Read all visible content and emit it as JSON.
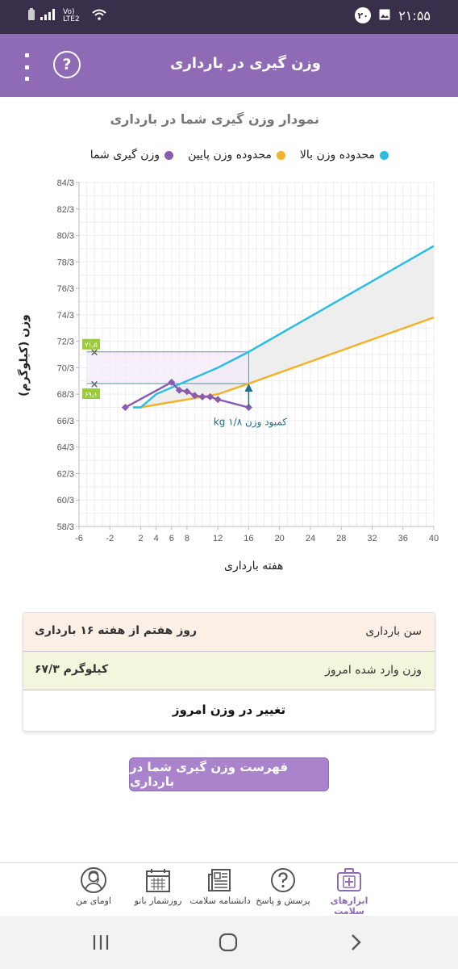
{
  "status": {
    "time": "۲۱:۵۵",
    "badge": "۲۰",
    "network": "Vo) LTE2"
  },
  "header": {
    "title": "وزن گیری در بارداری"
  },
  "chart_title": "نمودار وزن گیری شما در بارداری",
  "legend": {
    "upper": "محدوده وزن بالا",
    "lower": "محدوده وزن پایین",
    "yours": "وزن گیری شما"
  },
  "colors": {
    "upper": "#2bbde3",
    "lower": "#f2b22a",
    "yours": "#8a5bb0",
    "accent": "#8f6ab5"
  },
  "chart_data": {
    "type": "line",
    "xlabel": "هفته بارداری",
    "ylabel": "وزن (کیلوگرم)",
    "xlim": [
      -6,
      40
    ],
    "ylim": [
      58.3,
      84.3
    ],
    "x_ticks": [
      -6,
      -2,
      2,
      4,
      6,
      8,
      12,
      16,
      20,
      24,
      28,
      32,
      36,
      40
    ],
    "y_ticks": [
      "58/3",
      "60/3",
      "62/3",
      "64/3",
      "66/3",
      "68/3",
      "70/3",
      "72/3",
      "74/3",
      "76/3",
      "78/3",
      "80/3",
      "82/3",
      "84/3"
    ],
    "grid": true,
    "series": [
      {
        "name": "محدوده وزن بالا",
        "x": [
          1,
          2,
          4,
          8,
          12,
          16,
          40
        ],
        "y": [
          67.3,
          67.3,
          68.3,
          69.3,
          70.3,
          71.5,
          79.5
        ]
      },
      {
        "name": "محدوده وزن پایین",
        "x": [
          1,
          2,
          12,
          16,
          40
        ],
        "y": [
          67.3,
          67.3,
          68.3,
          69.1,
          74.1
        ]
      },
      {
        "name": "وزن گیری شما",
        "x": [
          0,
          6,
          7,
          8,
          9,
          10,
          11,
          12,
          16
        ],
        "y": [
          67.3,
          69.2,
          68.6,
          68.5,
          68.2,
          68.1,
          68.1,
          67.9,
          67.3
        ]
      }
    ],
    "annotations": {
      "upper_value": "۷۱٫۵",
      "lower_value": "۶۹٫۱",
      "deficit_text": "کمبود وزن ۱/۸ kg"
    }
  },
  "info": {
    "age_label": "سن بارداری",
    "age_value": "روز هفتم از هفته ۱۶ بارداری",
    "weight_label": "وزن وارد شده امروز",
    "weight_value": "۶۷/۳ کیلوگرم",
    "change_label": "تغییر در وزن امروز"
  },
  "list_button": "فهرست وزن گیری شما در بارداری",
  "bottom_nav": [
    {
      "label": "ابزارهای سلامت",
      "icon": "medical-kit-icon"
    },
    {
      "label": "پرسش و پاسخ",
      "icon": "question-icon"
    },
    {
      "label": "دانشنامه سلامت",
      "icon": "newspaper-icon"
    },
    {
      "label": "روزشمار بانو",
      "icon": "calendar-icon"
    },
    {
      "label": "اومای من",
      "icon": "profile-icon"
    }
  ]
}
